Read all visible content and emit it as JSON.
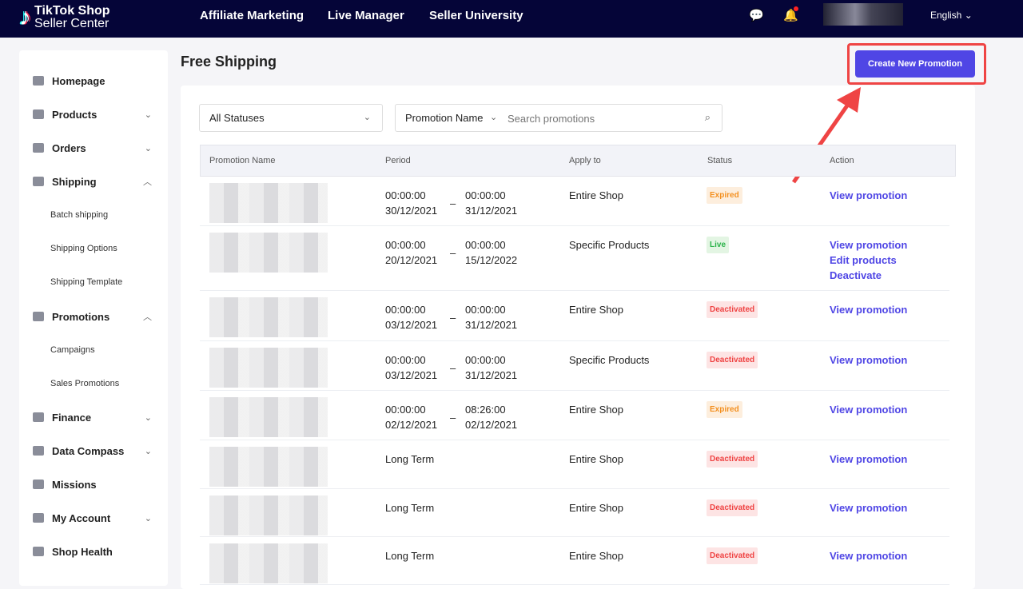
{
  "header": {
    "brand_line1": "TikTok Shop",
    "brand_line2": "Seller Center",
    "nav": [
      "Affiliate Marketing",
      "Live Manager",
      "Seller University"
    ],
    "language": "English"
  },
  "sidebar": {
    "items": [
      {
        "label": "Homepage",
        "y": 101,
        "chev": ""
      },
      {
        "label": "Products",
        "chev": "v"
      },
      {
        "label": "Orders",
        "chev": "v"
      },
      {
        "label": "Shipping",
        "chev": "^"
      },
      {
        "label": "Promotions",
        "chev": "^"
      },
      {
        "label": "Finance",
        "chev": "v"
      },
      {
        "label": "Data Compass",
        "chev": "v"
      },
      {
        "label": "Missions",
        "chev": ""
      },
      {
        "label": "My Account",
        "chev": "v"
      },
      {
        "label": "Shop Health",
        "chev": ""
      }
    ],
    "shipping_sub": [
      "Batch shipping",
      "Shipping Options",
      "Shipping Template"
    ],
    "promotions_sub": [
      "Campaigns",
      "Sales Promotions"
    ]
  },
  "page": {
    "title": "Free Shipping",
    "create_button": "Create New Promotion"
  },
  "filters": {
    "status": "All Statuses",
    "search_field": "Promotion Name",
    "search_placeholder": "Search promotions"
  },
  "table": {
    "headers": [
      "Promotion Name",
      "Period",
      "Apply to",
      "Status",
      "Action"
    ],
    "rows": [
      {
        "start": [
          "00:00:00",
          "30/12/2021"
        ],
        "end": [
          "00:00:00",
          "31/12/2021"
        ],
        "apply": "Entire Shop",
        "status": "Expired",
        "actions": [
          "View promotion"
        ]
      },
      {
        "start": [
          "00:00:00",
          "20/12/2021"
        ],
        "end": [
          "00:00:00",
          "15/12/2022"
        ],
        "apply": "Specific Products",
        "status": "Live",
        "actions": [
          "View promotion",
          "Edit products",
          "Deactivate"
        ]
      },
      {
        "start": [
          "00:00:00",
          "03/12/2021"
        ],
        "end": [
          "00:00:00",
          "31/12/2021"
        ],
        "apply": "Entire Shop",
        "status": "Deactivated",
        "actions": [
          "View promotion"
        ]
      },
      {
        "start": [
          "00:00:00",
          "03/12/2021"
        ],
        "end": [
          "00:00:00",
          "31/12/2021"
        ],
        "apply": "Specific Products",
        "status": "Deactivated",
        "actions": [
          "View promotion"
        ]
      },
      {
        "start": [
          "00:00:00",
          "02/12/2021"
        ],
        "end": [
          "08:26:00",
          "02/12/2021"
        ],
        "apply": "Entire Shop",
        "status": "Expired",
        "actions": [
          "View promotion"
        ]
      },
      {
        "period": "Long Term",
        "apply": "Entire Shop",
        "status": "Deactivated",
        "actions": [
          "View promotion"
        ]
      },
      {
        "period": "Long Term",
        "apply": "Entire Shop",
        "status": "Deactivated",
        "actions": [
          "View promotion"
        ]
      },
      {
        "period": "Long Term",
        "apply": "Entire Shop",
        "status": "Deactivated",
        "actions": [
          "View promotion"
        ]
      }
    ]
  }
}
